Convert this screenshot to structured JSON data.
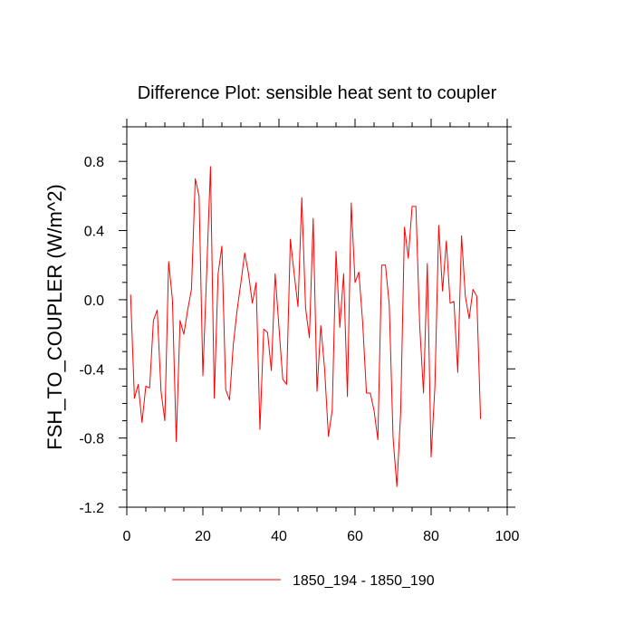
{
  "chart_data": {
    "type": "line",
    "title": "Difference Plot: sensible heat sent to coupler",
    "xlabel": "",
    "ylabel": "FSH_TO_COUPLER  (W/m^2)",
    "xlim": [
      0,
      100
    ],
    "ylim": [
      -1.2,
      1.0
    ],
    "xticks": [
      0,
      20,
      40,
      60,
      80,
      100
    ],
    "xtick_labels": [
      "0",
      "20",
      "40",
      "60",
      "80",
      "100"
    ],
    "yticks": [
      -1.2,
      -0.8,
      -0.4,
      0.0,
      0.4,
      0.8
    ],
    "ytick_labels": [
      "-1.2",
      "-0.8",
      "-0.4",
      "0.0",
      "0.4",
      "0.8"
    ],
    "grid": false,
    "legend_position": "bottom-center",
    "series": [
      {
        "name": "1850_194 - 1850_190",
        "color": "#ff0000",
        "x": [
          1,
          2,
          3,
          4,
          5,
          6,
          7,
          8,
          9,
          10,
          11,
          12,
          13,
          14,
          15,
          16,
          17,
          18,
          19,
          20,
          21,
          22,
          23,
          24,
          25,
          26,
          27,
          28,
          29,
          30,
          31,
          32,
          33,
          34,
          35,
          36,
          37,
          38,
          39,
          40,
          41,
          42,
          43,
          44,
          45,
          46,
          47,
          48,
          49,
          50,
          51,
          52,
          53,
          54,
          55,
          56,
          57,
          58,
          59,
          60,
          61,
          62,
          63,
          64,
          65,
          66,
          67,
          68,
          69,
          70,
          71,
          72,
          73,
          74,
          75,
          76,
          77,
          78,
          79,
          80,
          81,
          82,
          83,
          84,
          85,
          86,
          87,
          88,
          89,
          90,
          91,
          92,
          93
        ],
        "values": [
          0.03,
          -0.57,
          -0.49,
          -0.71,
          -0.5,
          -0.51,
          -0.12,
          -0.06,
          -0.53,
          -0.7,
          0.22,
          0.0,
          -0.82,
          -0.12,
          -0.2,
          -0.06,
          0.06,
          0.7,
          0.6,
          -0.44,
          0.16,
          0.77,
          -0.57,
          0.15,
          0.31,
          -0.52,
          -0.58,
          -0.26,
          -0.06,
          0.1,
          0.27,
          0.15,
          -0.02,
          0.1,
          -0.75,
          -0.17,
          -0.19,
          -0.41,
          0.15,
          -0.16,
          -0.46,
          -0.49,
          0.35,
          0.15,
          -0.04,
          0.59,
          -0.05,
          -0.22,
          0.47,
          -0.53,
          -0.15,
          -0.4,
          -0.79,
          -0.64,
          0.28,
          -0.16,
          0.15,
          -0.56,
          0.56,
          0.1,
          0.16,
          -0.13,
          -0.54,
          -0.54,
          -0.64,
          -0.81,
          0.2,
          0.2,
          -0.03,
          -0.8,
          -1.08,
          -0.65,
          0.42,
          0.24,
          0.54,
          0.54,
          -0.15,
          -0.54,
          0.21,
          -0.91,
          -0.5,
          0.43,
          0.05,
          0.34,
          -0.02,
          -0.01,
          -0.42,
          0.37,
          0.02,
          -0.11,
          0.06,
          0.02,
          -0.69
        ]
      }
    ]
  }
}
